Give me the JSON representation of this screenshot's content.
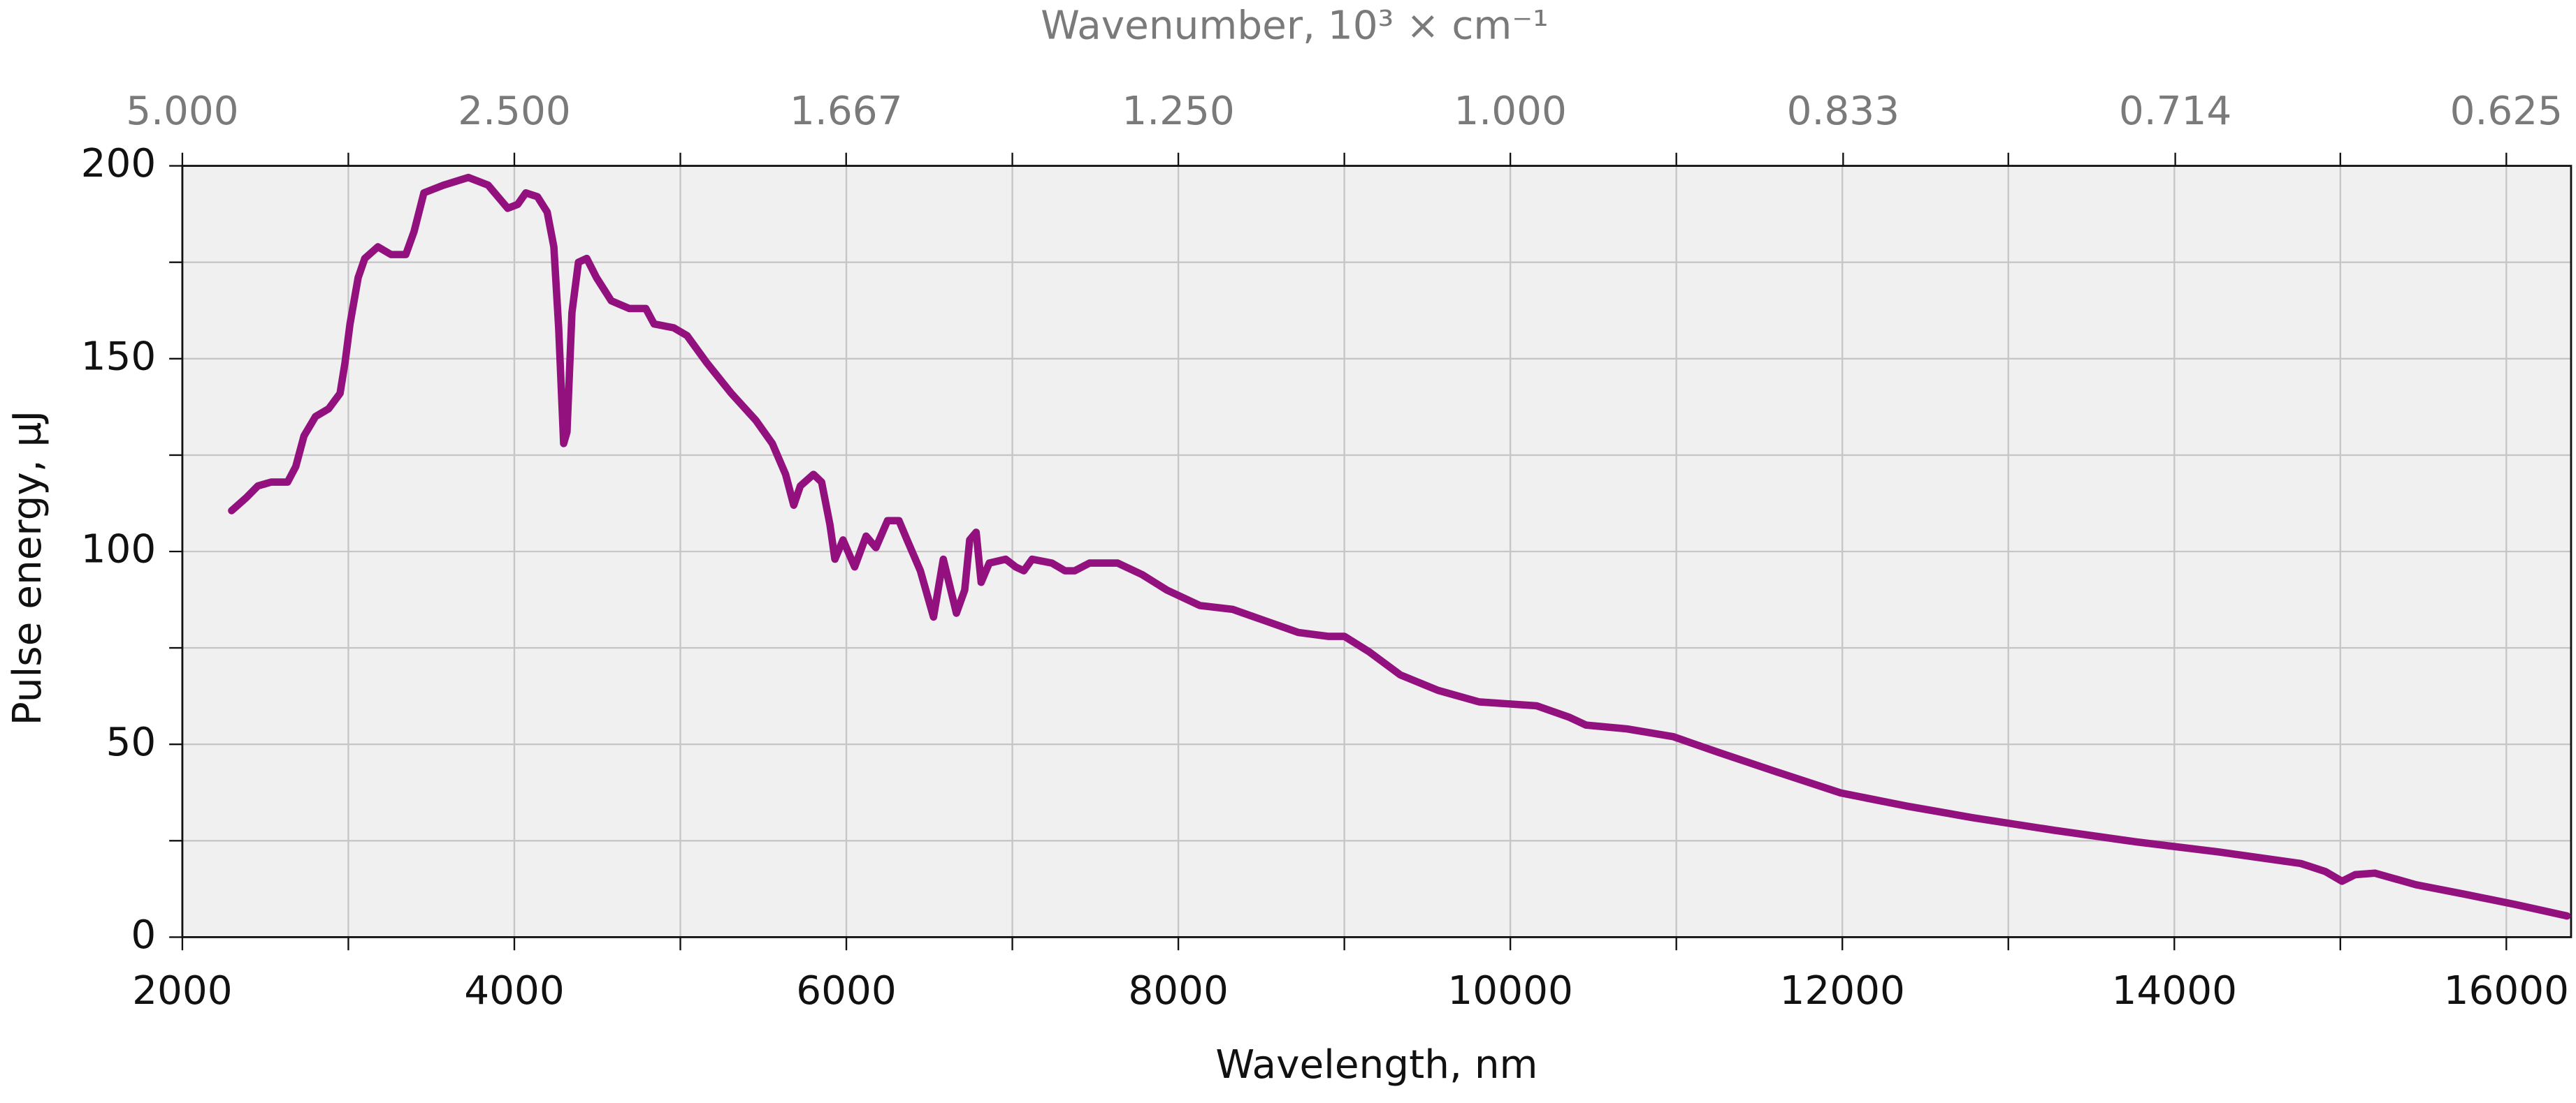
{
  "chart_data": {
    "type": "line",
    "xlabel": "Wavelength, nm",
    "ylabel": "Pulse energy, µJ",
    "x2label": "Wavenumber, 10³ × cm⁻¹",
    "color": "#93117e",
    "background": "#f0f0f0",
    "grid": true,
    "xlim": [
      2000,
      16390
    ],
    "ylim": [
      0,
      200
    ],
    "xticks": [
      2000,
      4000,
      6000,
      8000,
      10000,
      12000,
      14000,
      16000
    ],
    "xminorticks": [
      3000,
      5000,
      7000,
      9000,
      11000,
      13000,
      15000
    ],
    "yticks": [
      0,
      50,
      100,
      150,
      200
    ],
    "yminorticks": [
      25,
      75,
      125,
      175
    ],
    "x2ticks": [
      {
        "value": 5,
        "label": "5.000"
      },
      {
        "value": 2.5,
        "label": "2.500"
      },
      {
        "value": 1.667,
        "label": "1.667"
      },
      {
        "value": 1.25,
        "label": "1.250"
      },
      {
        "value": 1,
        "label": "1.000"
      },
      {
        "value": 0.833,
        "label": "0.833"
      },
      {
        "value": 0.714,
        "label": "0.714"
      },
      {
        "value": 0.625,
        "label": "0.625"
      }
    ],
    "x": [
      2297,
      2386,
      2455,
      2535,
      2634,
      2683,
      2733,
      2802,
      2881,
      2950,
      2980,
      3010,
      3059,
      3099,
      3178,
      3257,
      3346,
      3396,
      3455,
      3574,
      3723,
      3842,
      3901,
      3960,
      4020,
      4069,
      4139,
      4198,
      4238,
      4267,
      4297,
      4317,
      4347,
      4386,
      4436,
      4495,
      4584,
      4693,
      4792,
      4842,
      4960,
      5040,
      5158,
      5307,
      5455,
      5554,
      5634,
      5683,
      5723,
      5802,
      5851,
      5901,
      5931,
      5980,
      6050,
      6119,
      6178,
      6248,
      6317,
      6366,
      6446,
      6525,
      6584,
      6663,
      6713,
      6743,
      6782,
      6812,
      6861,
      6960,
      7020,
      7069,
      7119,
      7238,
      7317,
      7376,
      7465,
      7634,
      7782,
      7931,
      8129,
      8327,
      8525,
      8723,
      8901,
      9000,
      9149,
      9337,
      9564,
      9812,
      10158,
      10356,
      10455,
      10703,
      10980,
      11248,
      11594,
      11990,
      12386,
      12782,
      13277,
      13772,
      14267,
      14762,
      14911,
      15010,
      15089,
      15208,
      15455,
      15752,
      16050,
      16366
    ],
    "values": [
      110.6,
      114,
      117,
      118,
      118,
      122,
      130,
      135,
      137,
      141,
      149,
      159,
      171,
      176,
      179,
      177,
      177,
      183,
      193,
      195,
      197,
      195,
      192,
      189,
      190,
      193,
      192,
      188,
      179,
      158,
      128,
      131,
      162,
      175,
      176,
      171,
      165,
      163,
      163,
      159,
      158,
      156,
      149,
      141,
      134,
      128,
      120,
      112,
      117,
      120,
      118,
      107,
      98,
      103,
      96,
      104,
      101,
      108,
      108,
      103,
      95,
      83,
      98,
      84,
      90,
      103,
      105,
      92,
      97,
      98,
      96,
      95,
      98,
      97,
      95,
      95,
      97,
      97,
      94,
      90,
      86,
      85,
      82,
      79,
      78,
      78,
      74,
      68,
      64,
      61,
      60,
      57,
      55,
      54,
      52,
      48,
      43,
      37.4,
      34,
      31,
      27.7,
      24.7,
      22.1,
      19.1,
      17,
      14.5,
      16.2,
      16.6,
      13.6,
      11.1,
      8.5,
      5.5
    ]
  }
}
